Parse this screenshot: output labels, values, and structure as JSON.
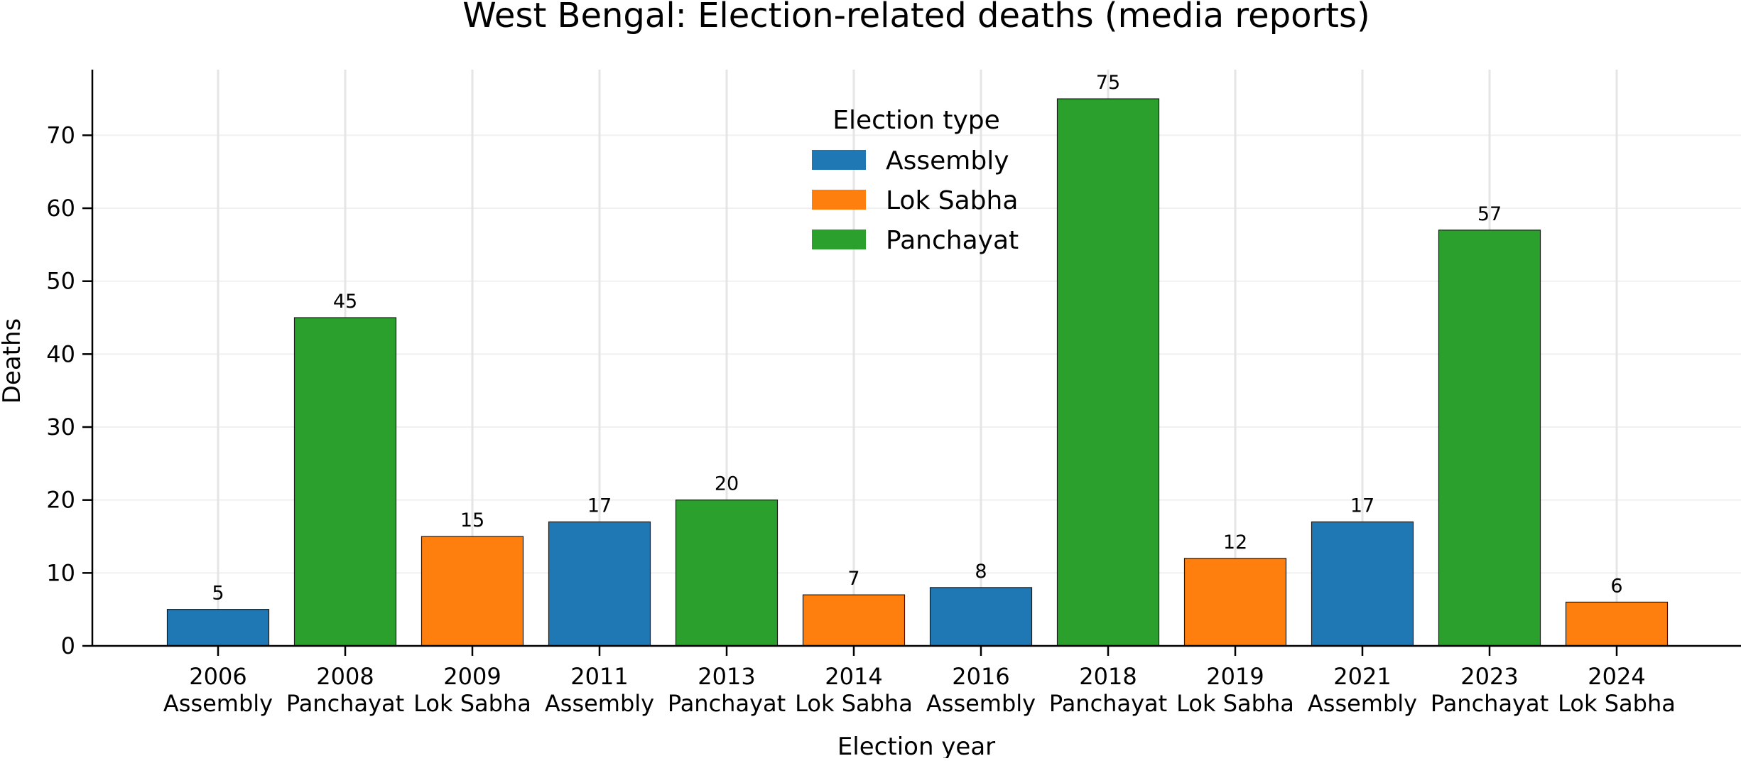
{
  "chart_data": {
    "type": "bar",
    "title": "West Bengal: Election-related deaths (media reports)",
    "xlabel": "Election year",
    "ylabel": "Deaths",
    "ylim": [
      0,
      79
    ],
    "yticks": [
      0,
      10,
      20,
      30,
      40,
      50,
      60,
      70
    ],
    "grid": "on",
    "legend_position": "top-center",
    "legend_title": "Election type",
    "legend": [
      {
        "name": "Assembly",
        "color": "#1f77b4"
      },
      {
        "name": "Lok Sabha",
        "color": "#ff7f0e"
      },
      {
        "name": "Panchayat",
        "color": "#2ca02c"
      }
    ],
    "categories": [
      {
        "year": "2006",
        "type": "Assembly",
        "value": 5
      },
      {
        "year": "2008",
        "type": "Panchayat",
        "value": 45
      },
      {
        "year": "2009",
        "type": "Lok Sabha",
        "value": 15
      },
      {
        "year": "2011",
        "type": "Assembly",
        "value": 17
      },
      {
        "year": "2013",
        "type": "Panchayat",
        "value": 20
      },
      {
        "year": "2014",
        "type": "Lok Sabha",
        "value": 7
      },
      {
        "year": "2016",
        "type": "Assembly",
        "value": 8
      },
      {
        "year": "2018",
        "type": "Panchayat",
        "value": 75
      },
      {
        "year": "2019",
        "type": "Lok Sabha",
        "value": 12
      },
      {
        "year": "2021",
        "type": "Assembly",
        "value": 17
      },
      {
        "year": "2023",
        "type": "Panchayat",
        "value": 57
      },
      {
        "year": "2024",
        "type": "Lok Sabha",
        "value": 6
      }
    ]
  }
}
